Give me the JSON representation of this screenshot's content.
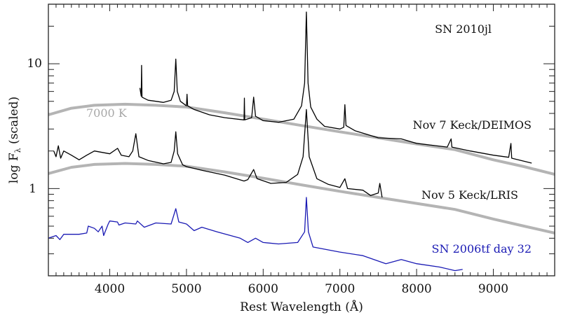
{
  "chart_data": {
    "type": "line",
    "title": "",
    "xlabel": "Rest Wavelength (Å)",
    "ylabel_main": "log F",
    "ylabel_sub": "λ",
    "ylabel_suffix": " (scaled)",
    "xlim": [
      3200,
      9800
    ],
    "ylim": [
      0.2,
      30
    ],
    "yscale": "log",
    "grid": false,
    "xticks": [
      4000,
      5000,
      6000,
      7000,
      8000,
      9000
    ],
    "yticks": [
      1,
      10
    ],
    "ytick_labels": [
      "1",
      "10"
    ],
    "annotations": {
      "object": "SN 2010jl",
      "blackbody": "7000 K",
      "upper": "Nov 7 Keck/DEIMOS",
      "middle": "Nov 5 Keck/LRIS",
      "comparison": "SN 2006tf day 32"
    },
    "colors": {
      "spectrum": "#000000",
      "comparison": "#1a1ab4",
      "blackbody": "#b4b4b4"
    },
    "series": [
      {
        "name": "Nov 7 Keck/DEIMOS",
        "color": "#000000",
        "points": [
          [
            4393,
            6.4
          ],
          [
            4410,
            5.5
          ],
          [
            4415,
            9.7
          ],
          [
            4420,
            5.4
          ],
          [
            4500,
            5.1
          ],
          [
            4600,
            5.0
          ],
          [
            4700,
            4.9
          ],
          [
            4800,
            5.1
          ],
          [
            4840,
            6.0
          ],
          [
            4861,
            10.9
          ],
          [
            4880,
            6.0
          ],
          [
            4920,
            5.0
          ],
          [
            5000,
            4.6
          ],
          [
            5007,
            5.7
          ],
          [
            5015,
            4.6
          ],
          [
            5100,
            4.3
          ],
          [
            5300,
            3.9
          ],
          [
            5500,
            3.7
          ],
          [
            5750,
            3.55
          ],
          [
            5755,
            5.3
          ],
          [
            5760,
            3.55
          ],
          [
            5850,
            3.7
          ],
          [
            5876,
            5.4
          ],
          [
            5900,
            3.8
          ],
          [
            6000,
            3.5
          ],
          [
            6200,
            3.4
          ],
          [
            6400,
            3.6
          ],
          [
            6500,
            4.6
          ],
          [
            6540,
            7.0
          ],
          [
            6563,
            26
          ],
          [
            6585,
            7.0
          ],
          [
            6620,
            4.5
          ],
          [
            6700,
            3.6
          ],
          [
            6800,
            3.15
          ],
          [
            7000,
            3.0
          ],
          [
            7050,
            3.1
          ],
          [
            7065,
            4.7
          ],
          [
            7080,
            3.2
          ],
          [
            7200,
            2.9
          ],
          [
            7500,
            2.55
          ],
          [
            7800,
            2.5
          ],
          [
            8000,
            2.3
          ],
          [
            8400,
            2.15
          ],
          [
            8450,
            2.5
          ],
          [
            8460,
            2.15
          ],
          [
            8700,
            2.0
          ],
          [
            9000,
            1.85
          ],
          [
            9200,
            1.78
          ],
          [
            9230,
            2.3
          ],
          [
            9240,
            1.75
          ],
          [
            9500,
            1.6
          ]
        ]
      },
      {
        "name": "Nov 5 Keck/LRIS",
        "color": "#000000",
        "points": [
          [
            3270,
            2.0
          ],
          [
            3300,
            1.8
          ],
          [
            3330,
            2.2
          ],
          [
            3360,
            1.75
          ],
          [
            3400,
            2.0
          ],
          [
            3500,
            1.85
          ],
          [
            3600,
            1.7
          ],
          [
            3700,
            1.85
          ],
          [
            3800,
            2.0
          ],
          [
            3900,
            1.95
          ],
          [
            4000,
            1.9
          ],
          [
            4102,
            2.1
          ],
          [
            4150,
            1.85
          ],
          [
            4250,
            1.8
          ],
          [
            4300,
            2.0
          ],
          [
            4340,
            2.75
          ],
          [
            4380,
            1.8
          ],
          [
            4500,
            1.68
          ],
          [
            4700,
            1.58
          ],
          [
            4800,
            1.62
          ],
          [
            4840,
            2.0
          ],
          [
            4861,
            2.85
          ],
          [
            4885,
            1.9
          ],
          [
            4950,
            1.55
          ],
          [
            5000,
            1.5
          ],
          [
            5200,
            1.4
          ],
          [
            5500,
            1.28
          ],
          [
            5750,
            1.15
          ],
          [
            5800,
            1.18
          ],
          [
            5876,
            1.42
          ],
          [
            5920,
            1.2
          ],
          [
            6100,
            1.1
          ],
          [
            6300,
            1.12
          ],
          [
            6450,
            1.3
          ],
          [
            6520,
            1.8
          ],
          [
            6563,
            4.3
          ],
          [
            6600,
            1.8
          ],
          [
            6700,
            1.2
          ],
          [
            6850,
            1.08
          ],
          [
            7000,
            1.02
          ],
          [
            7065,
            1.2
          ],
          [
            7100,
            1.0
          ],
          [
            7300,
            0.97
          ],
          [
            7400,
            0.88
          ],
          [
            7500,
            0.92
          ],
          [
            7520,
            1.1
          ],
          [
            7550,
            0.85
          ]
        ]
      },
      {
        "name": "SN 2006tf day 32",
        "color": "#1a1ab4",
        "points": [
          [
            3200,
            0.4
          ],
          [
            3300,
            0.42
          ],
          [
            3350,
            0.39
          ],
          [
            3400,
            0.43
          ],
          [
            3600,
            0.43
          ],
          [
            3700,
            0.44
          ],
          [
            3720,
            0.5
          ],
          [
            3800,
            0.48
          ],
          [
            3850,
            0.45
          ],
          [
            3900,
            0.5
          ],
          [
            3920,
            0.42
          ],
          [
            3980,
            0.52
          ],
          [
            4000,
            0.55
          ],
          [
            4100,
            0.54
          ],
          [
            4120,
            0.51
          ],
          [
            4200,
            0.53
          ],
          [
            4340,
            0.52
          ],
          [
            4360,
            0.55
          ],
          [
            4450,
            0.49
          ],
          [
            4600,
            0.53
          ],
          [
            4800,
            0.52
          ],
          [
            4861,
            0.69
          ],
          [
            4900,
            0.54
          ],
          [
            5000,
            0.52
          ],
          [
            5100,
            0.46
          ],
          [
            5200,
            0.49
          ],
          [
            5400,
            0.45
          ],
          [
            5700,
            0.4
          ],
          [
            5800,
            0.37
          ],
          [
            5900,
            0.4
          ],
          [
            6000,
            0.37
          ],
          [
            6200,
            0.36
          ],
          [
            6450,
            0.37
          ],
          [
            6540,
            0.45
          ],
          [
            6563,
            0.85
          ],
          [
            6590,
            0.45
          ],
          [
            6650,
            0.34
          ],
          [
            7000,
            0.31
          ],
          [
            7300,
            0.29
          ],
          [
            7600,
            0.25
          ],
          [
            7800,
            0.27
          ],
          [
            8000,
            0.25
          ],
          [
            8300,
            0.235
          ],
          [
            8500,
            0.22
          ],
          [
            8600,
            0.225
          ]
        ]
      },
      {
        "name": "7000 K",
        "color": "#b4b4b4",
        "points": [
          [
            3200,
            3.9
          ],
          [
            3500,
            4.4
          ],
          [
            3800,
            4.65
          ],
          [
            4200,
            4.74
          ],
          [
            4600,
            4.65
          ],
          [
            5000,
            4.5
          ],
          [
            5500,
            4.05
          ],
          [
            6000,
            3.6
          ],
          [
            6500,
            3.2
          ],
          [
            7000,
            2.85
          ],
          [
            7500,
            2.55
          ],
          [
            8000,
            2.28
          ],
          [
            8500,
            2.05
          ],
          [
            9000,
            1.7
          ],
          [
            9400,
            1.5
          ],
          [
            9800,
            1.3
          ]
        ]
      },
      {
        "name": "7000 K",
        "color": "#b4b4b4",
        "points": [
          [
            3200,
            1.32
          ],
          [
            3500,
            1.48
          ],
          [
            3800,
            1.56
          ],
          [
            4200,
            1.59
          ],
          [
            4600,
            1.56
          ],
          [
            5000,
            1.51
          ],
          [
            5500,
            1.36
          ],
          [
            6000,
            1.21
          ],
          [
            6500,
            1.07
          ],
          [
            7000,
            0.95
          ],
          [
            7500,
            0.85
          ],
          [
            8000,
            0.76
          ],
          [
            8500,
            0.68
          ],
          [
            9000,
            0.57
          ],
          [
            9400,
            0.5
          ],
          [
            9800,
            0.44
          ]
        ]
      }
    ]
  }
}
